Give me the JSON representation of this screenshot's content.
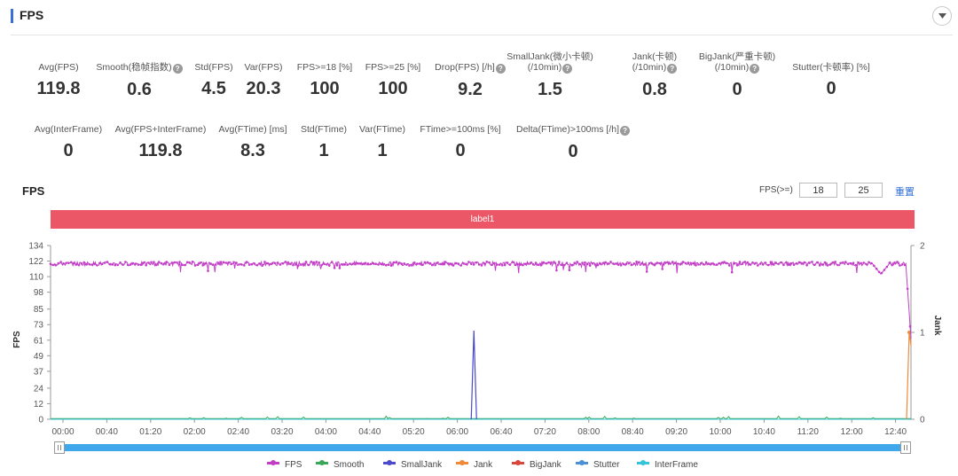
{
  "panel": {
    "title": "FPS"
  },
  "stats_row1": [
    {
      "label": "Avg(FPS)",
      "value": "119.8",
      "help": false
    },
    {
      "label": "Smooth(稳帧指数)",
      "value": "0.6",
      "help": true
    },
    {
      "label": "Std(FPS)",
      "value": "4.5",
      "help": false
    },
    {
      "label": "Var(FPS)",
      "value": "20.3",
      "help": false
    },
    {
      "label": "FPS>=18 [%]",
      "value": "100",
      "help": false
    },
    {
      "label": "FPS>=25 [%]",
      "value": "100",
      "help": false
    },
    {
      "label": "Drop(FPS) [/h]",
      "value": "9.2",
      "help": true
    },
    {
      "label": "SmallJank(微小卡顿)",
      "label2": "(/10min)",
      "value": "1.5",
      "help": true
    },
    {
      "label": "Jank(卡顿)",
      "label2": "(/10min)",
      "value": "0.8",
      "help": true
    },
    {
      "label": "BigJank(严重卡顿)",
      "label2": "(/10min)",
      "value": "0",
      "help": true
    },
    {
      "label": "Stutter(卡顿率) [%]",
      "value": "0",
      "help": false
    }
  ],
  "stats_row2": [
    {
      "label": "Avg(InterFrame)",
      "value": "0",
      "help": false
    },
    {
      "label": "Avg(FPS+InterFrame)",
      "value": "119.8",
      "help": false
    },
    {
      "label": "Avg(FTime) [ms]",
      "value": "8.3",
      "help": false
    },
    {
      "label": "Std(FTime)",
      "value": "1",
      "help": false
    },
    {
      "label": "Var(FTime)",
      "value": "1",
      "help": false
    },
    {
      "label": "FTime>=100ms [%]",
      "value": "0",
      "help": false
    },
    {
      "label": "Delta(FTime)>100ms [/h]",
      "value": "0",
      "help": true
    }
  ],
  "chart_header": {
    "title": "FPS",
    "filter_label": "FPS(>=)",
    "threshold1": "18",
    "threshold2": "25",
    "reset_label": "重置"
  },
  "label_band": {
    "text": "label1",
    "color": "#eb5766"
  },
  "chart_data": {
    "type": "line",
    "y_left": {
      "label": "FPS",
      "ticks": [
        0,
        12,
        24,
        37,
        49,
        61,
        73,
        85,
        98,
        110,
        122,
        134
      ],
      "range": [
        0,
        134
      ]
    },
    "y_right": {
      "label": "Jank",
      "ticks": [
        0,
        1,
        2
      ],
      "range": [
        0,
        2
      ]
    },
    "x_ticks": [
      "00:00",
      "00:40",
      "01:20",
      "02:00",
      "02:40",
      "03:20",
      "04:00",
      "04:40",
      "05:20",
      "06:00",
      "06:40",
      "07:20",
      "08:00",
      "08:40",
      "09:20",
      "10:00",
      "10:40",
      "11:20",
      "12:00",
      "12:40"
    ],
    "x_range_seconds": [
      0,
      790
    ],
    "series": [
      {
        "name": "FPS",
        "color": "#c23ec7",
        "axis": "left",
        "baseline": 120,
        "dips": [
          [
            236,
            118
          ],
          [
            389,
            117
          ],
          [
            628,
            118
          ],
          [
            1000,
            108
          ]
        ],
        "end_drop": 62
      },
      {
        "name": "Smooth",
        "color": "#3aa657",
        "axis": "left",
        "baseline": 0.5
      },
      {
        "name": "SmallJank",
        "color": "#4a4acb",
        "axis": "right",
        "spikes": [
          [
            387,
            1.0
          ]
        ]
      },
      {
        "name": "Jank",
        "color": "#ef8a3a",
        "axis": "right",
        "spikes": [
          [
            785,
            1.0
          ]
        ]
      },
      {
        "name": "BigJank",
        "color": "#d9463c",
        "axis": "right",
        "spikes": []
      },
      {
        "name": "Stutter",
        "color": "#4a90d9",
        "axis": "right",
        "spikes": []
      },
      {
        "name": "InterFrame",
        "color": "#36c5d8",
        "axis": "left",
        "baseline": 0
      }
    ],
    "legend_position": "bottom"
  },
  "legend": [
    {
      "name": "FPS",
      "color": "#c23ec7"
    },
    {
      "name": "Smooth",
      "color": "#3aa657"
    },
    {
      "name": "SmallJank",
      "color": "#4a4acb"
    },
    {
      "name": "Jank",
      "color": "#ef8a3a"
    },
    {
      "name": "BigJank",
      "color": "#d9463c"
    },
    {
      "name": "Stutter",
      "color": "#4a90d9"
    },
    {
      "name": "InterFrame",
      "color": "#36c5d8"
    }
  ]
}
